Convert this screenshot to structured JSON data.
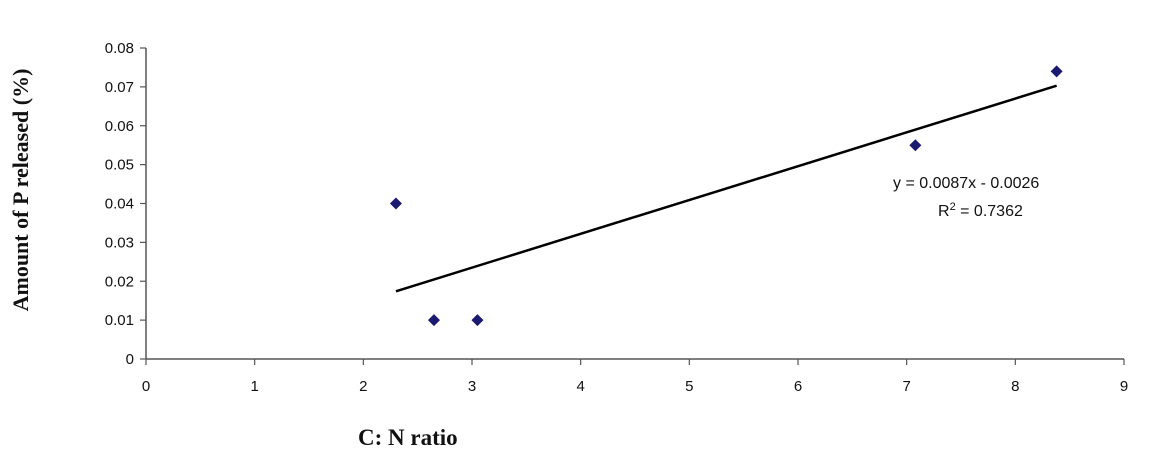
{
  "chart_data": {
    "type": "scatter",
    "title": "",
    "xlabel": "C: N ratio",
    "ylabel": "Amount of  P released (%)",
    "xlim": [
      0,
      9
    ],
    "ylim": [
      0,
      0.08
    ],
    "x_ticks": [
      "0",
      "1",
      "2",
      "3",
      "4",
      "5",
      "6",
      "7",
      "8",
      "9"
    ],
    "y_ticks": [
      "0",
      "0.01",
      "0.02",
      "0.03",
      "0.04",
      "0.05",
      "0.06",
      "0.07",
      "0.08"
    ],
    "grid": false,
    "points": [
      {
        "x": 2.3,
        "y": 0.04
      },
      {
        "x": 2.65,
        "y": 0.01
      },
      {
        "x": 3.05,
        "y": 0.01
      },
      {
        "x": 7.08,
        "y": 0.055
      },
      {
        "x": 8.38,
        "y": 0.074
      }
    ],
    "trendline": {
      "type": "linear",
      "slope": 0.0087,
      "intercept": -0.0026,
      "x_range": [
        2.3,
        8.38
      ],
      "equation_label": "y = 0.0087x - 0.0026",
      "r2_prefix": "R",
      "r2_sup": "2",
      "r2_value": " = 0.7362"
    },
    "colors": {
      "marker": "#1a1a70",
      "line": "#000000",
      "axis": "#555555"
    }
  }
}
